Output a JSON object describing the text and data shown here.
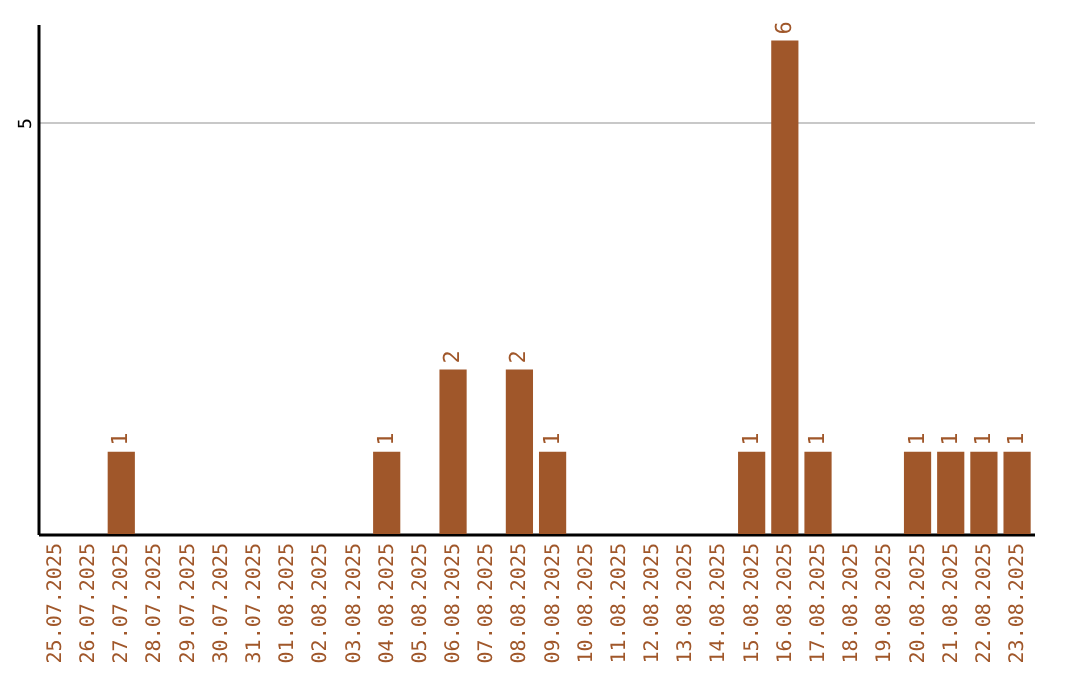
{
  "chart_data": {
    "type": "bar",
    "categories": [
      "25.07.2025",
      "26.07.2025",
      "27.07.2025",
      "28.07.2025",
      "29.07.2025",
      "30.07.2025",
      "31.07.2025",
      "01.08.2025",
      "02.08.2025",
      "03.08.2025",
      "04.08.2025",
      "05.08.2025",
      "06.08.2025",
      "07.08.2025",
      "08.08.2025",
      "09.08.2025",
      "10.08.2025",
      "11.08.2025",
      "12.08.2025",
      "13.08.2025",
      "14.08.2025",
      "15.08.2025",
      "16.08.2025",
      "17.08.2025",
      "18.08.2025",
      "19.08.2025",
      "20.08.2025",
      "21.08.2025",
      "22.08.2025",
      "23.08.2025"
    ],
    "values": [
      0,
      0,
      1,
      0,
      0,
      0,
      0,
      0,
      0,
      0,
      1,
      0,
      2,
      0,
      2,
      1,
      0,
      0,
      0,
      0,
      0,
      1,
      6,
      1,
      0,
      0,
      1,
      1,
      1,
      1
    ],
    "value_labels": [
      null,
      null,
      "1",
      null,
      null,
      null,
      null,
      null,
      null,
      null,
      "1",
      null,
      "2",
      null,
      "2",
      "1",
      null,
      null,
      null,
      null,
      null,
      "1",
      "6",
      "1",
      null,
      null,
      "1",
      "1",
      "1",
      "1"
    ],
    "color": "#a0572a",
    "ylim": [
      0,
      6.2
    ],
    "yticks": [
      5
    ],
    "grid": "y"
  }
}
